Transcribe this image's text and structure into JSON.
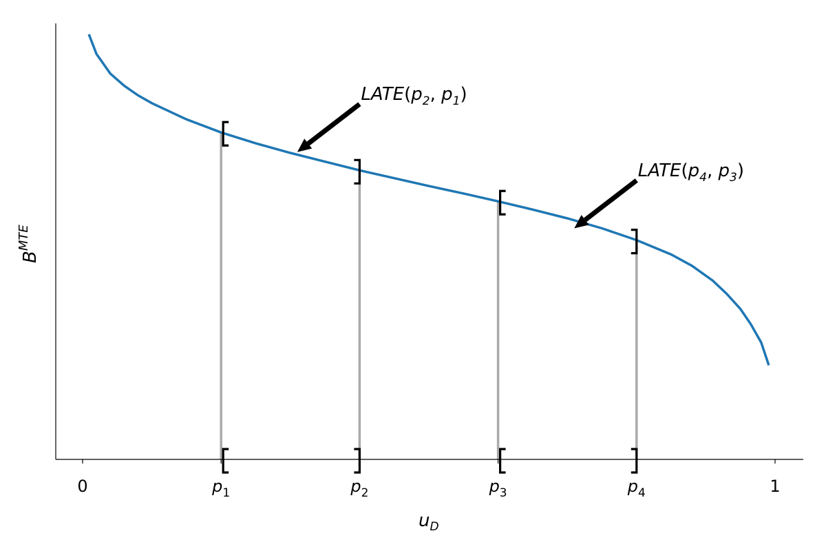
{
  "chart_data": {
    "type": "line",
    "title": "",
    "xlabel": {
      "main": "u",
      "sub": "D"
    },
    "ylabel": {
      "main": "B",
      "sup": "MTE"
    },
    "xlim": [
      -0.04,
      1.04
    ],
    "grid": false,
    "x_ticks": [
      {
        "value": 0,
        "main": "0",
        "sub": ""
      },
      {
        "value": 0.2,
        "main": "p",
        "sub": "1"
      },
      {
        "value": 0.4,
        "main": "p",
        "sub": "2"
      },
      {
        "value": 0.6,
        "main": "p",
        "sub": "3"
      },
      {
        "value": 0.8,
        "main": "p",
        "sub": "4"
      },
      {
        "value": 1,
        "main": "1",
        "sub": ""
      }
    ],
    "series": [
      {
        "color": "#1f77b4",
        "x": [
          0.009,
          0.02,
          0.04,
          0.06,
          0.08,
          0.1,
          0.15,
          0.2,
          0.25,
          0.3,
          0.35,
          0.4,
          0.45,
          0.5,
          0.55,
          0.6,
          0.65,
          0.7,
          0.75,
          0.8,
          0.85,
          0.88,
          0.91,
          0.93,
          0.95,
          0.965,
          0.98,
          0.991
        ],
        "y": [
          0.975,
          0.93,
          0.885,
          0.857,
          0.835,
          0.817,
          0.78,
          0.75,
          0.725,
          0.703,
          0.683,
          0.663,
          0.645,
          0.627,
          0.61,
          0.592,
          0.573,
          0.553,
          0.53,
          0.503,
          0.47,
          0.444,
          0.41,
          0.38,
          0.345,
          0.31,
          0.268,
          0.216
        ]
      }
    ],
    "intervals": [
      {
        "x": 0.2,
        "bracket": "[",
        "y": 0.75
      },
      {
        "x": 0.4,
        "bracket": "]",
        "y": 0.663
      },
      {
        "x": 0.6,
        "bracket": "[",
        "y": 0.592
      },
      {
        "x": 0.8,
        "bracket": "]",
        "y": 0.503
      }
    ],
    "vline_color": "#aaaaaa",
    "annotations": [
      {
        "parts": [
          "LATE",
          "(",
          "p",
          "2",
          ", ",
          "p",
          "1",
          ")"
        ],
        "text_x": 0.4,
        "text_y": 0.815,
        "point_x": 0.31,
        "point_y": 0.705
      },
      {
        "parts": [
          "LATE",
          "(",
          "p",
          "4",
          ", ",
          "p",
          "3",
          ")"
        ],
        "text_x": 0.8,
        "text_y": 0.64,
        "point_x": 0.71,
        "point_y": 0.53
      }
    ]
  }
}
